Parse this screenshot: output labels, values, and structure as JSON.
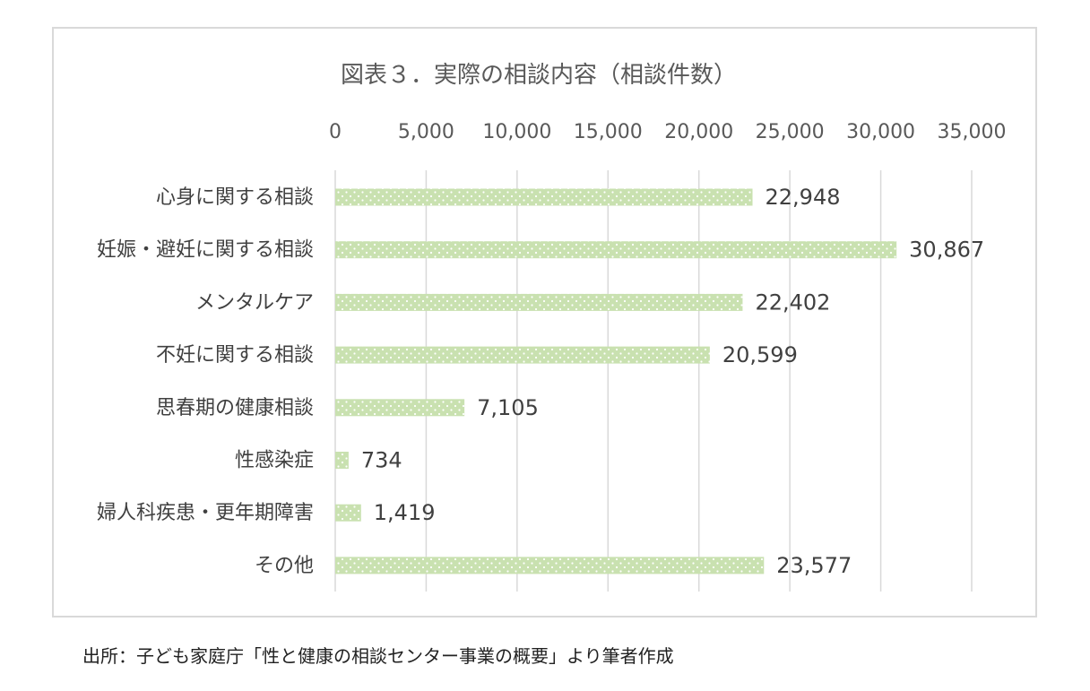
{
  "chart_data": {
    "type": "bar",
    "orientation": "horizontal",
    "title": "図表３．実際の相談内容（相談件数）",
    "xlabel": "",
    "ylabel": "",
    "xlim": [
      0,
      35000
    ],
    "x_ticks": [
      0,
      5000,
      10000,
      15000,
      20000,
      25000,
      30000,
      35000
    ],
    "x_tick_labels": [
      "0",
      "5,000",
      "10,000",
      "15,000",
      "20,000",
      "25,000",
      "30,000",
      "35,000"
    ],
    "x_axis_position": "top",
    "grid": true,
    "legend": "none",
    "categories": [
      "心身に関する相談",
      "妊娠・避妊に関する相談",
      "メンタルケア",
      "不妊に関する相談",
      "思春期の健康相談",
      "性感染症",
      "婦人科疾患・更年期障害",
      "その他"
    ],
    "values": [
      22948,
      30867,
      22402,
      20599,
      7105,
      734,
      1419,
      23577
    ],
    "data_labels": [
      "22,948",
      "30,867",
      "22,402",
      "20,599",
      "7,105",
      "734",
      "1,419",
      "23,577"
    ],
    "bar_color": "#c9e1b0",
    "bar_pattern": "dotted"
  },
  "source_note": "出所：子ども家庭庁「性と健康の相談センター事業の概要」より筆者作成"
}
